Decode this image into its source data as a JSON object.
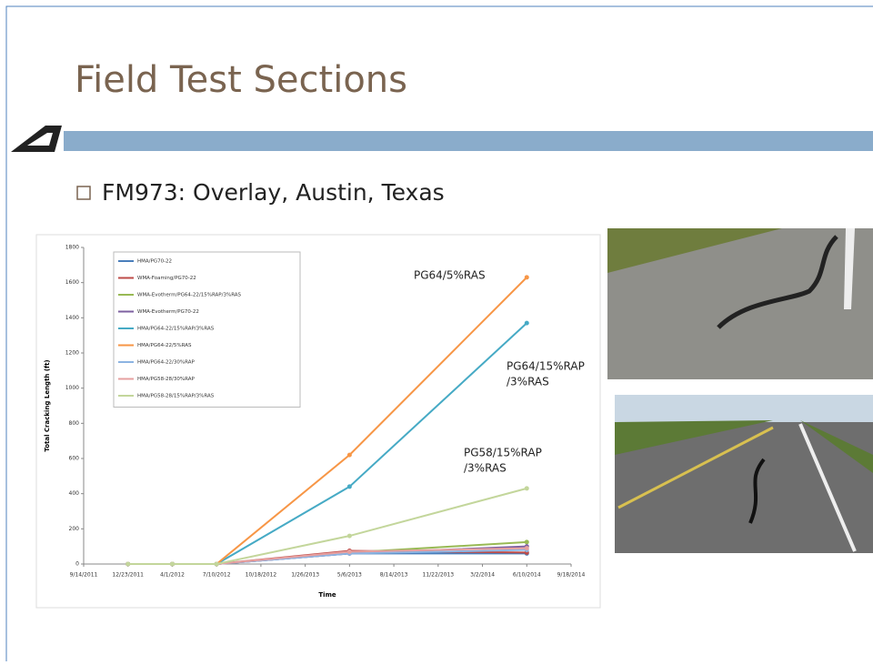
{
  "slide": {
    "title": "Field Test Sections",
    "bullet": "FM973: Overlay, Austin, Texas"
  },
  "chart_data": {
    "type": "line",
    "x_label": "Time",
    "y_label": "Total Cracking Length (ft)",
    "x": [
      "12/23/2011",
      "4/1/2012",
      "7/10/2012",
      "5/6/2013",
      "6/10/2014"
    ],
    "xlim": [
      "9/14/2011",
      "9/18/2014"
    ],
    "xticks": [
      "9/14/2011",
      "12/23/2011",
      "4/1/2012",
      "7/10/2012",
      "10/18/2012",
      "1/26/2013",
      "5/6/2013",
      "8/14/2013",
      "11/22/2013",
      "3/2/2014",
      "6/10/2014",
      "9/18/2014"
    ],
    "ylim": [
      0,
      1800
    ],
    "yticks": [
      0,
      200,
      400,
      600,
      800,
      1000,
      1200,
      1400,
      1600,
      1800
    ],
    "grid": false,
    "legend": "upper left",
    "series": [
      {
        "name": "HMA/PG70-22",
        "color": "#4a7ebb",
        "values": [
          0,
          0,
          0,
          60,
          60
        ]
      },
      {
        "name": "WMA-Foaming/PG70-22",
        "color": "#be4b48",
        "values": [
          0,
          0,
          0,
          75,
          65
        ]
      },
      {
        "name": "WMA-Evotherm/PG64-22/15%RAP/3%RAS",
        "color": "#98b954",
        "values": [
          0,
          0,
          0,
          65,
          125
        ]
      },
      {
        "name": "WMA-Evotherm/PG70-22",
        "color": "#7d60a0",
        "values": [
          0,
          0,
          0,
          60,
          100
        ]
      },
      {
        "name": "HMA/PG64-22/15%RAP/3%RAS",
        "color": "#46aac5",
        "values": [
          0,
          0,
          0,
          440,
          1370
        ]
      },
      {
        "name": "HMA/PG64-22/5%RAS",
        "color": "#f79646",
        "values": [
          0,
          0,
          0,
          620,
          1630
        ]
      },
      {
        "name": "HMA/PG64-22/30%RAP",
        "color": "#8cb4e2",
        "values": [
          0,
          0,
          0,
          60,
          80
        ]
      },
      {
        "name": "HMA/PG58-28/30%RAP",
        "color": "#e6a0a0",
        "values": [
          0,
          0,
          0,
          70,
          90
        ]
      },
      {
        "name": "HMA/PG58-28/15%RAP/3%RAS",
        "color": "#c3d69b",
        "values": [
          0,
          0,
          0,
          160,
          430
        ]
      }
    ],
    "annotations": [
      [
        "PG64/5%RAS"
      ],
      [
        "PG64/15%RAP",
        "/3%RAS"
      ],
      [
        "PG58/15%RAP",
        "/3%RAS"
      ]
    ]
  }
}
